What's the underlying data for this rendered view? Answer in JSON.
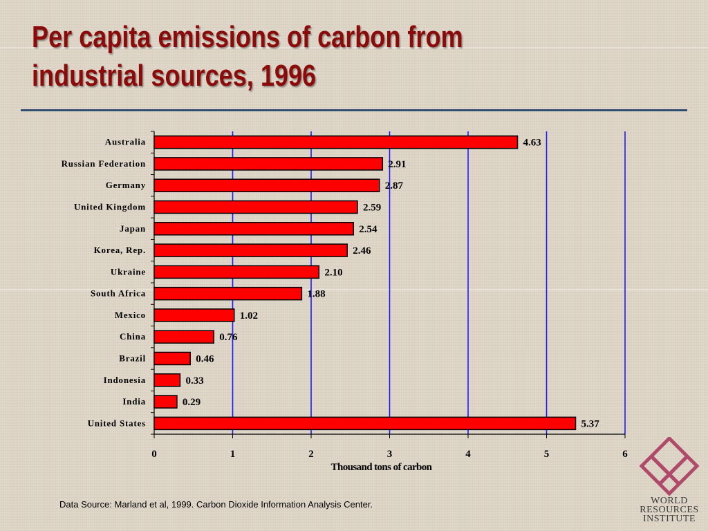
{
  "slide": {
    "title_line1": "Per capita emissions of carbon from",
    "title_line2": "industrial sources, 1996",
    "source": "Data Source: Marland et al, 1999. Carbon Dioxide Information Analysis Center."
  },
  "logo": {
    "line1": "WORLD",
    "line2": "RESOURCES",
    "line3": "INSTITUTE",
    "color": "#b04a6a"
  },
  "chart_data": {
    "type": "bar",
    "orientation": "horizontal",
    "categories": [
      "Australia",
      "Russian Federation",
      "Germany",
      "United Kingdom",
      "Japan",
      "Korea, Rep.",
      "Ukraine",
      "South Africa",
      "Mexico",
      "China",
      "Brazil",
      "Indonesia",
      "India",
      "United States"
    ],
    "values": [
      4.63,
      2.91,
      2.87,
      2.59,
      2.54,
      2.46,
      2.1,
      1.88,
      1.02,
      0.76,
      0.46,
      0.33,
      0.29,
      5.37
    ],
    "value_labels": [
      "4.63",
      "2.91",
      "2.87",
      "2.59",
      "2.54",
      "2.46",
      "2.10",
      "1.88",
      "1.02",
      "0.76",
      "0.46",
      "0.33",
      "0.29",
      "5.37"
    ],
    "xlabel": "Thousand tons of carbon",
    "ylabel": "",
    "xlim": [
      0,
      6
    ],
    "xticks": [
      0,
      1,
      2,
      3,
      4,
      5,
      6
    ],
    "grid": "vertical",
    "bar_color": "#ff0000",
    "bar_edge_color": "#000000",
    "grid_color": "#1a1aff"
  }
}
